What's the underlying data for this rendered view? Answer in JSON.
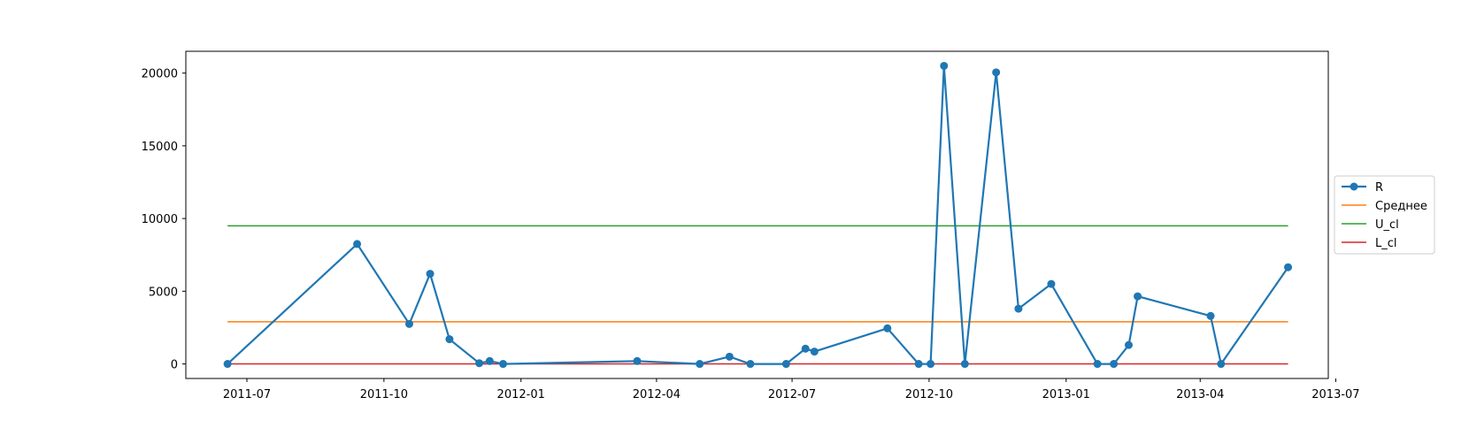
{
  "chart_data": {
    "type": "line",
    "x_ticks": [
      "2011-07",
      "2011-10",
      "2012-01",
      "2012-04",
      "2012-07",
      "2012-10",
      "2013-01",
      "2013-04",
      "2013-07"
    ],
    "y_ticks": [
      0,
      5000,
      10000,
      15000,
      20000
    ],
    "ylim": [
      -1000,
      21500
    ],
    "xlim": [
      "2011-05-21",
      "2013-06-26"
    ],
    "grid": false,
    "legend_position": "center-right",
    "series": [
      {
        "name": "R",
        "type": "line-marker",
        "color": "#1f77b4",
        "x": [
          "2011-06-18",
          "2011-09-13",
          "2011-10-18",
          "2011-11-01",
          "2011-11-14",
          "2011-12-04",
          "2011-12-11",
          "2011-12-20",
          "2012-03-19",
          "2012-04-30",
          "2012-05-20",
          "2012-06-03",
          "2012-06-27",
          "2012-07-10",
          "2012-07-16",
          "2012-09-03",
          "2012-09-24",
          "2012-10-02",
          "2012-10-11",
          "2012-10-25",
          "2012-11-15",
          "2012-11-30",
          "2012-12-22",
          "2013-01-22",
          "2013-02-02",
          "2013-02-12",
          "2013-02-18",
          "2013-04-08",
          "2013-04-15",
          "2013-05-30"
        ],
        "values": [
          0,
          8250,
          2750,
          6200,
          1700,
          50,
          200,
          0,
          200,
          0,
          500,
          0,
          0,
          1050,
          850,
          2450,
          0,
          0,
          20500,
          0,
          20050,
          3800,
          5500,
          0,
          0,
          1300,
          4650,
          3300,
          0,
          6650
        ]
      },
      {
        "name": "Среднее",
        "type": "hline",
        "color": "#ff7f0e",
        "value": 2900
      },
      {
        "name": "U_cl",
        "type": "hline",
        "color": "#2ca02c",
        "value": 9500
      },
      {
        "name": "L_cl",
        "type": "hline",
        "color": "#d62728",
        "value": 0
      }
    ]
  }
}
